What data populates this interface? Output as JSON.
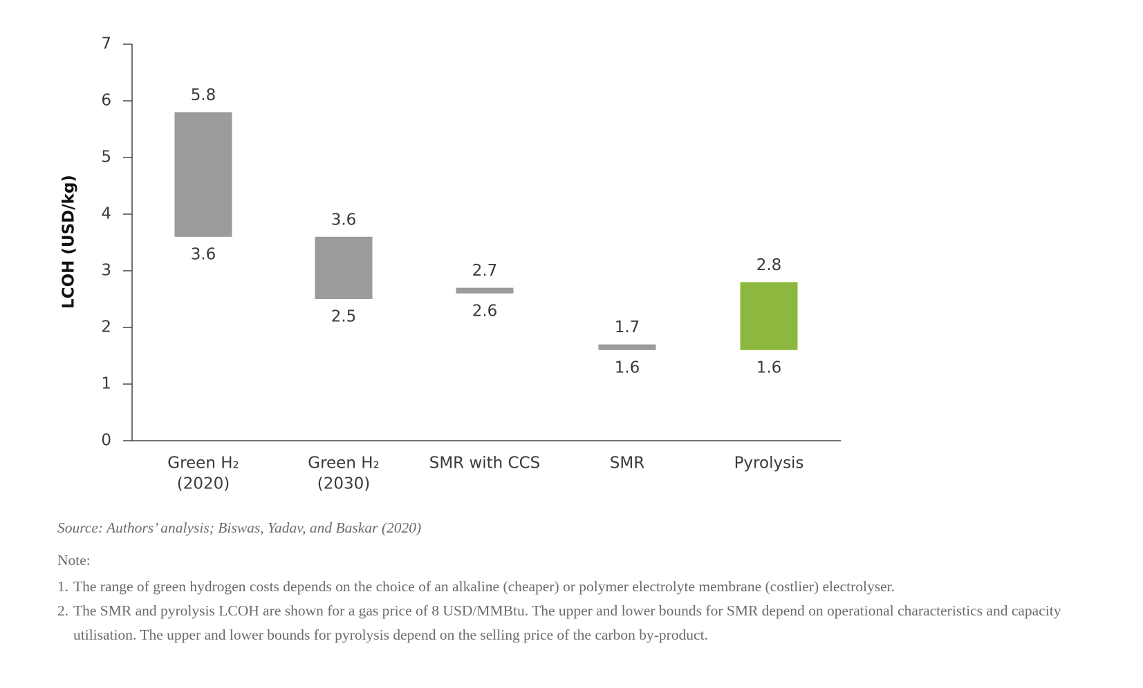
{
  "chart_data": {
    "type": "range-bar",
    "y_label": "LCOH (USD/kg)",
    "categories": [
      [
        "Green H₂",
        "(2020)"
      ],
      [
        "Green H₂",
        "(2030)"
      ],
      [
        "SMR with CCS"
      ],
      [
        "SMR"
      ],
      [
        "Pyrolysis"
      ]
    ],
    "low": [
      3.6,
      2.5,
      2.6,
      1.6,
      1.6
    ],
    "high": [
      5.8,
      3.6,
      2.7,
      1.7,
      2.8
    ],
    "colors": [
      "#9b9b9b",
      "#9b9b9b",
      "#9b9b9b",
      "#9b9b9b",
      "#8db83f"
    ],
    "ylim": [
      0,
      7
    ],
    "yticks": [
      0,
      1,
      2,
      3,
      4,
      5,
      6,
      7
    ],
    "grid": false
  },
  "source": "Source: Authors’ analysis; Biswas, Yadav, and Baskar (2020)",
  "note_title": "Note:",
  "notes": [
    {
      "number": "1.",
      "text": "The range of green hydrogen costs depends on the choice of an alkaline (cheaper) or polymer electrolyte membrane (costlier) electrolyser."
    },
    {
      "number": "2.",
      "text": "The SMR and pyrolysis LCOH are shown for a gas price of 8 USD/MMBtu. The upper and lower bounds for SMR depend on operational characteristics and capacity utilisation. The upper and lower bounds for pyrolysis depend on the selling price of the carbon by-product."
    }
  ]
}
